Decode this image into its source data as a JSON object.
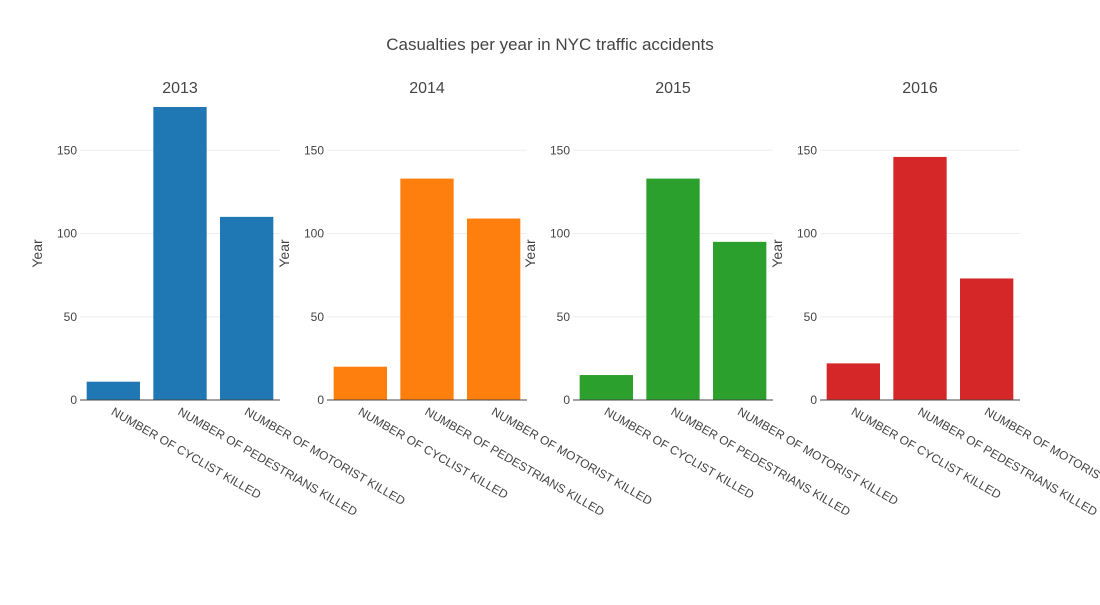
{
  "chart_data": {
    "type": "bar",
    "title": "Casualties per year in NYC traffic accidents",
    "categories": [
      "NUMBER OF CYCLIST KILLED",
      "NUMBER OF PEDESTRIANS KILLED",
      "NUMBER OF MOTORIST KILLED"
    ],
    "category_labels_last_panel": [
      "NUMBER OF CYCLIST KILLED",
      "NUMBER OF PEDESTRIANS KILLED",
      "NUMBER OF MOTORIST"
    ],
    "ylabel": "Year",
    "ylim": [
      0,
      176
    ],
    "yticks": [
      0,
      50,
      100,
      150
    ],
    "grid": true,
    "panels": [
      {
        "subtitle": "2013",
        "color": "#1f77b4",
        "values": [
          11,
          176,
          110
        ]
      },
      {
        "subtitle": "2014",
        "color": "#ff7f0e",
        "values": [
          20,
          133,
          109
        ]
      },
      {
        "subtitle": "2015",
        "color": "#2ca02c",
        "values": [
          15,
          133,
          95
        ]
      },
      {
        "subtitle": "2016",
        "color": "#d62728",
        "values": [
          22,
          146,
          73
        ]
      }
    ]
  }
}
